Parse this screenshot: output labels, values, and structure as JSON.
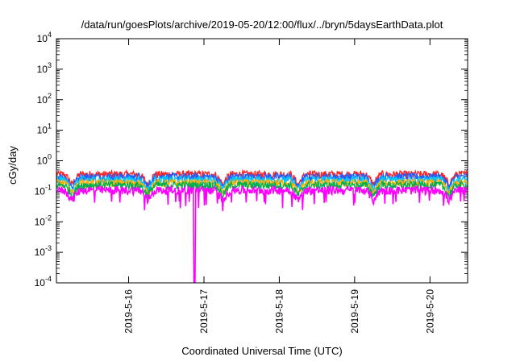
{
  "chart_data": {
    "type": "line",
    "title": "/data/run/goesPlots/archive/2019-05-20/12:00/flux/../bryn/5daysEarthData.plot",
    "xlabel": "Coordinated Universal Time (UTC)",
    "ylabel": "cGy/day",
    "yscale": "log",
    "ylim": [
      0.0001,
      10000
    ],
    "xlim": [
      "2019-05-15 01:00",
      "2019-05-20 12:00"
    ],
    "x_ticks": [
      "2019-5-16",
      "2019-5-17",
      "2019-5-18",
      "2019-5-19",
      "2019-5-20"
    ],
    "y_ticks": [
      {
        "base": "10",
        "exp": "-4"
      },
      {
        "base": "10",
        "exp": "-3"
      },
      {
        "base": "10",
        "exp": "-2"
      },
      {
        "base": "10",
        "exp": "-1"
      },
      {
        "base": "10",
        "exp": "0"
      },
      {
        "base": "10",
        "exp": "1"
      },
      {
        "base": "10",
        "exp": "2"
      },
      {
        "base": "10",
        "exp": "3"
      },
      {
        "base": "10",
        "exp": "4"
      }
    ],
    "grid": false,
    "legend": "none",
    "series": [
      {
        "color": "#ff2020",
        "level": 0.36
      },
      {
        "color": "#1f5fff",
        "level": 0.3
      },
      {
        "color": "#00c8ff",
        "level": 0.24
      },
      {
        "color": "#ffb000",
        "level": 0.19
      },
      {
        "color": "#00b050",
        "level": 0.16
      },
      {
        "color": "#ff00ff",
        "level": 0.11
      }
    ],
    "dips": [
      {
        "time": "2019-05-16 21:00",
        "value": 0.0001
      }
    ]
  }
}
